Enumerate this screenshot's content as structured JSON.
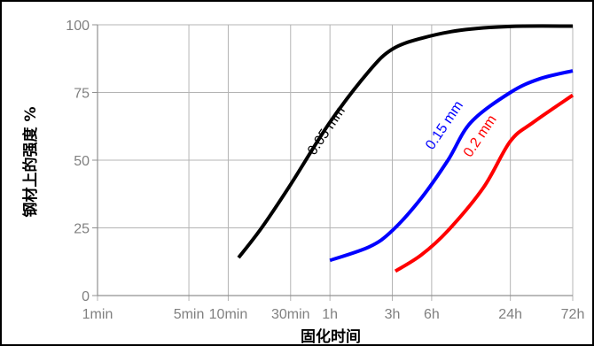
{
  "chart_data": {
    "type": "line",
    "title": "",
    "xlabel": "固化时间",
    "ylabel": "钢材上的强度 %",
    "x_scale": "log",
    "x_ticks": [
      {
        "label": "1min",
        "minutes": 1
      },
      {
        "label": "5min",
        "minutes": 5
      },
      {
        "label": "10min",
        "minutes": 10
      },
      {
        "label": "30min",
        "minutes": 30
      },
      {
        "label": "1h",
        "minutes": 60
      },
      {
        "label": "3h",
        "minutes": 180
      },
      {
        "label": "6h",
        "minutes": 360
      },
      {
        "label": "24h",
        "minutes": 1440
      },
      {
        "label": "72h",
        "minutes": 4320
      }
    ],
    "y_ticks": [
      0,
      25,
      50,
      75,
      100
    ],
    "ylim": [
      0,
      100
    ],
    "grid": true,
    "series": [
      {
        "name": "0.05 mm",
        "color": "#000000",
        "points": [
          {
            "x": 12,
            "y": 14
          },
          {
            "x": 18,
            "y": 25
          },
          {
            "x": 30,
            "y": 41
          },
          {
            "x": 60,
            "y": 64
          },
          {
            "x": 120,
            "y": 83
          },
          {
            "x": 180,
            "y": 91
          },
          {
            "x": 300,
            "y": 95
          },
          {
            "x": 600,
            "y": 98
          },
          {
            "x": 1440,
            "y": 99.4
          },
          {
            "x": 4320,
            "y": 99.5
          }
        ]
      },
      {
        "name": "0.15 mm",
        "color": "#0000ff",
        "points": [
          {
            "x": 60,
            "y": 13
          },
          {
            "x": 120,
            "y": 18
          },
          {
            "x": 180,
            "y": 24
          },
          {
            "x": 300,
            "y": 36
          },
          {
            "x": 480,
            "y": 50
          },
          {
            "x": 720,
            "y": 64
          },
          {
            "x": 1440,
            "y": 75
          },
          {
            "x": 2400,
            "y": 80
          },
          {
            "x": 4320,
            "y": 83
          }
        ]
      },
      {
        "name": "0.2 mm",
        "color": "#ff0000",
        "points": [
          {
            "x": 190,
            "y": 9
          },
          {
            "x": 300,
            "y": 15
          },
          {
            "x": 480,
            "y": 24
          },
          {
            "x": 900,
            "y": 40
          },
          {
            "x": 1440,
            "y": 57
          },
          {
            "x": 2160,
            "y": 64
          },
          {
            "x": 4320,
            "y": 74
          }
        ]
      }
    ],
    "labels": [
      {
        "text": "0.05 mm",
        "color": "#000000",
        "x": 60,
        "y": 60
      },
      {
        "text": "0.15 mm",
        "color": "#0000ff",
        "x": 480,
        "y": 62
      },
      {
        "text": "0.2 mm",
        "color": "#ff0000",
        "x": 900,
        "y": 58
      }
    ]
  }
}
